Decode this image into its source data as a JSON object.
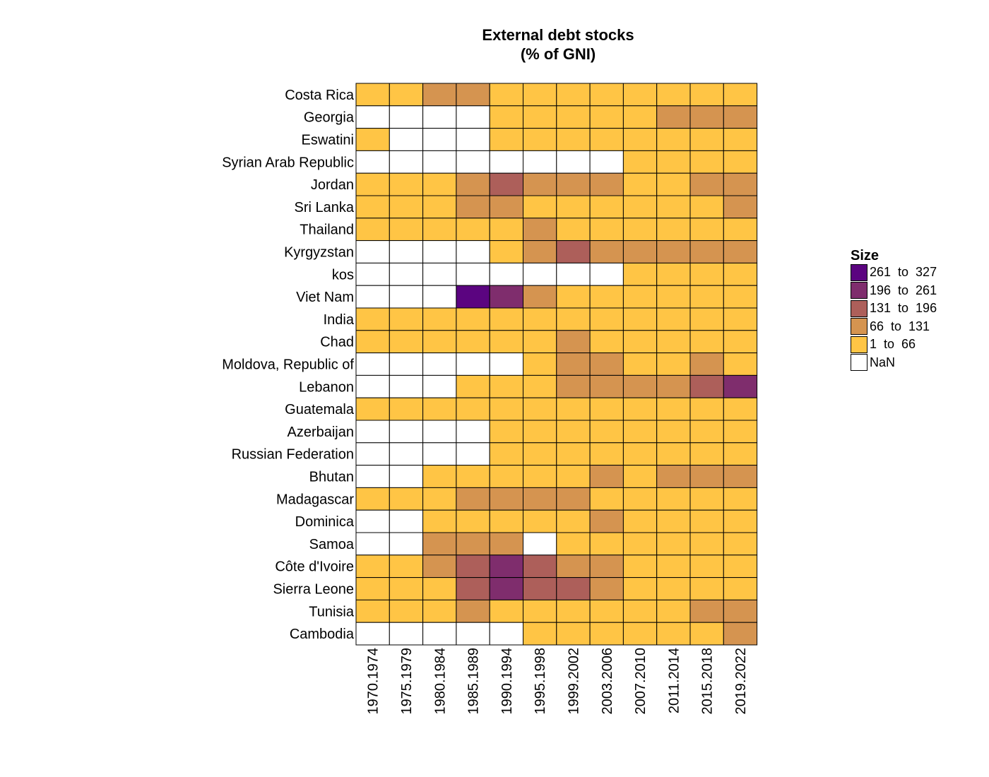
{
  "chart_data": {
    "type": "heatmap",
    "title": "External debt stocks\n(% of GNI)",
    "title_lines": [
      "External debt stocks",
      "(% of GNI)"
    ],
    "columns": [
      "1970.1974",
      "1975.1979",
      "1980.1984",
      "1985.1989",
      "1990.1994",
      "1995.1998",
      "1999.2002",
      "2003.2006",
      "2007.2010",
      "2011.2014",
      "2015.2018",
      "2019.2022"
    ],
    "rows": [
      "Costa Rica",
      "Georgia",
      "Eswatini",
      "Syrian Arab Republic",
      "Jordan",
      "Sri Lanka",
      "Thailand",
      "Kyrgyzstan",
      "kos",
      "Viet Nam",
      "India",
      "Chad",
      "Moldova, Republic of",
      "Lebanon",
      "Guatemala",
      "Azerbaijan",
      "Russian Federation",
      "Bhutan",
      "Madagascar",
      "Dominica",
      "Samoa",
      "Côte d'Ivoire",
      "Sierra Leone",
      "Tunisia",
      "Cambodia"
    ],
    "values": [
      [
        1,
        1,
        2,
        2,
        1,
        1,
        1,
        1,
        1,
        1,
        1,
        1
      ],
      [
        0,
        0,
        0,
        0,
        1,
        1,
        1,
        1,
        1,
        2,
        2,
        2
      ],
      [
        1,
        0,
        0,
        0,
        1,
        1,
        1,
        1,
        1,
        1,
        1,
        1
      ],
      [
        0,
        0,
        0,
        0,
        0,
        0,
        0,
        0,
        1,
        1,
        1,
        1
      ],
      [
        1,
        1,
        1,
        2,
        3,
        2,
        2,
        2,
        1,
        1,
        2,
        2
      ],
      [
        1,
        1,
        1,
        2,
        2,
        1,
        1,
        1,
        1,
        1,
        1,
        2
      ],
      [
        1,
        1,
        1,
        1,
        1,
        2,
        1,
        1,
        1,
        1,
        1,
        1
      ],
      [
        0,
        0,
        0,
        0,
        1,
        2,
        3,
        2,
        2,
        2,
        2,
        2
      ],
      [
        0,
        0,
        0,
        0,
        0,
        0,
        0,
        0,
        1,
        1,
        1,
        1
      ],
      [
        0,
        0,
        0,
        5,
        4,
        2,
        1,
        1,
        1,
        1,
        1,
        1
      ],
      [
        1,
        1,
        1,
        1,
        1,
        1,
        1,
        1,
        1,
        1,
        1,
        1
      ],
      [
        1,
        1,
        1,
        1,
        1,
        1,
        2,
        1,
        1,
        1,
        1,
        1
      ],
      [
        0,
        0,
        0,
        0,
        0,
        1,
        2,
        2,
        1,
        1,
        2,
        1
      ],
      [
        0,
        0,
        0,
        1,
        1,
        1,
        2,
        2,
        2,
        2,
        3,
        4
      ],
      [
        1,
        1,
        1,
        1,
        1,
        1,
        1,
        1,
        1,
        1,
        1,
        1
      ],
      [
        0,
        0,
        0,
        0,
        1,
        1,
        1,
        1,
        1,
        1,
        1,
        1
      ],
      [
        0,
        0,
        0,
        0,
        1,
        1,
        1,
        1,
        1,
        1,
        1,
        1
      ],
      [
        0,
        0,
        1,
        1,
        1,
        1,
        1,
        2,
        1,
        2,
        2,
        2
      ],
      [
        1,
        1,
        1,
        2,
        2,
        2,
        2,
        1,
        1,
        1,
        1,
        1
      ],
      [
        0,
        0,
        1,
        1,
        1,
        1,
        1,
        2,
        1,
        1,
        1,
        1
      ],
      [
        0,
        0,
        2,
        2,
        2,
        0,
        1,
        1,
        1,
        1,
        1,
        1
      ],
      [
        1,
        1,
        2,
        3,
        4,
        3,
        2,
        2,
        1,
        1,
        1,
        1
      ],
      [
        1,
        1,
        1,
        3,
        4,
        3,
        3,
        2,
        1,
        1,
        1,
        1
      ],
      [
        1,
        1,
        1,
        2,
        1,
        1,
        1,
        1,
        1,
        1,
        2,
        2
      ],
      [
        0,
        0,
        0,
        0,
        0,
        1,
        1,
        1,
        1,
        1,
        1,
        2
      ]
    ],
    "value_encoding": "index into legend.bins (0 = NaN)",
    "legend": {
      "title": "Size",
      "placement": "right",
      "bins": [
        {
          "label": "NaN",
          "color": "#ffffff"
        },
        {
          "label": "1  to  66",
          "color": "#ffc545"
        },
        {
          "label": "66  to  131",
          "color": "#d59450"
        },
        {
          "label": "131  to  196",
          "color": "#ad5f5a"
        },
        {
          "label": "196  to  261",
          "color": "#7f2d6d"
        },
        {
          "label": "261  to  327",
          "color": "#5b0480"
        }
      ]
    }
  }
}
